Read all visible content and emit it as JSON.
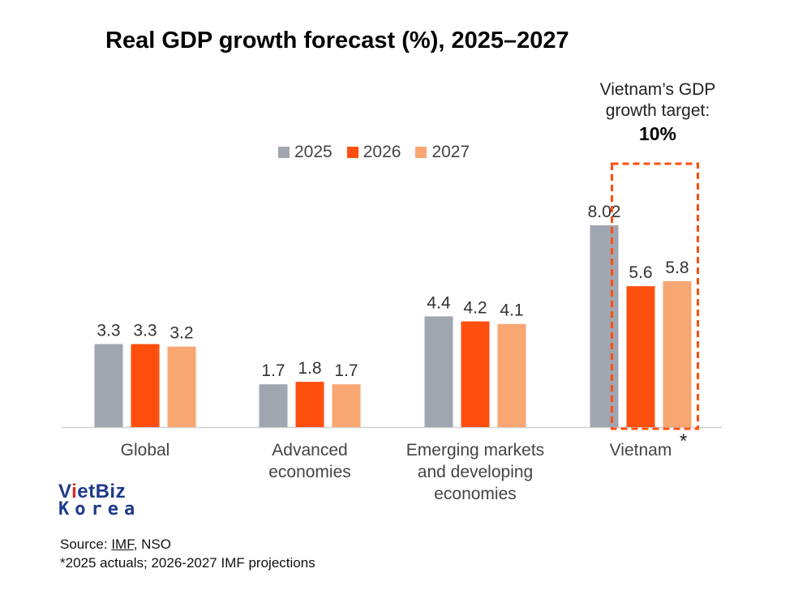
{
  "title": "Real GDP growth forecast (%), 2025–2027",
  "legend": [
    {
      "label": "2025",
      "color": "#a0a6b0"
    },
    {
      "label": "2026",
      "color": "#ff4f0e"
    },
    {
      "label": "2027",
      "color": "#f8a672"
    }
  ],
  "target_note": {
    "line1": "Vietnam’s GDP",
    "line2": "growth target:",
    "value": "10%",
    "asterisk": "*"
  },
  "chart_data": {
    "type": "bar",
    "title": "Real GDP growth forecast (%), 2025–2027",
    "categories": [
      "Global",
      "Advanced economies",
      "Emerging markets and developing economies",
      "Vietnam"
    ],
    "category_lines": [
      [
        "Global"
      ],
      [
        "Advanced",
        "economies"
      ],
      [
        "Emerging markets",
        "and developing",
        "economies"
      ],
      [
        "Vietnam"
      ]
    ],
    "series": [
      {
        "name": "2025",
        "values": [
          3.3,
          1.7,
          4.4,
          8.02
        ],
        "labels": [
          "3.3",
          "1.7",
          "4.4",
          "8.02"
        ]
      },
      {
        "name": "2026",
        "values": [
          3.3,
          1.8,
          4.2,
          5.6
        ],
        "labels": [
          "3.3",
          "1.8",
          "4.2",
          "5.6"
        ]
      },
      {
        "name": "2027",
        "values": [
          3.2,
          1.7,
          4.1,
          5.8
        ],
        "labels": [
          "3.2",
          "1.7",
          "4.1",
          "5.8"
        ]
      }
    ],
    "xlabel": "",
    "ylabel": "",
    "ylim": [
      0,
      8.02
    ],
    "grid": false,
    "legend_position": "top-center",
    "highlight": {
      "category": "Vietnam",
      "series": [
        "2026",
        "2027"
      ],
      "style": "dashed-box"
    }
  },
  "logo": {
    "line1_a": "V",
    "line1_b": "i",
    "line1_c": "etBiz",
    "line2": "Korea"
  },
  "source": {
    "prefix": "Source: ",
    "link": "IMF",
    "suffix": ", NSO",
    "note": "*2025 actuals; 2026-2027 IMF projections"
  }
}
